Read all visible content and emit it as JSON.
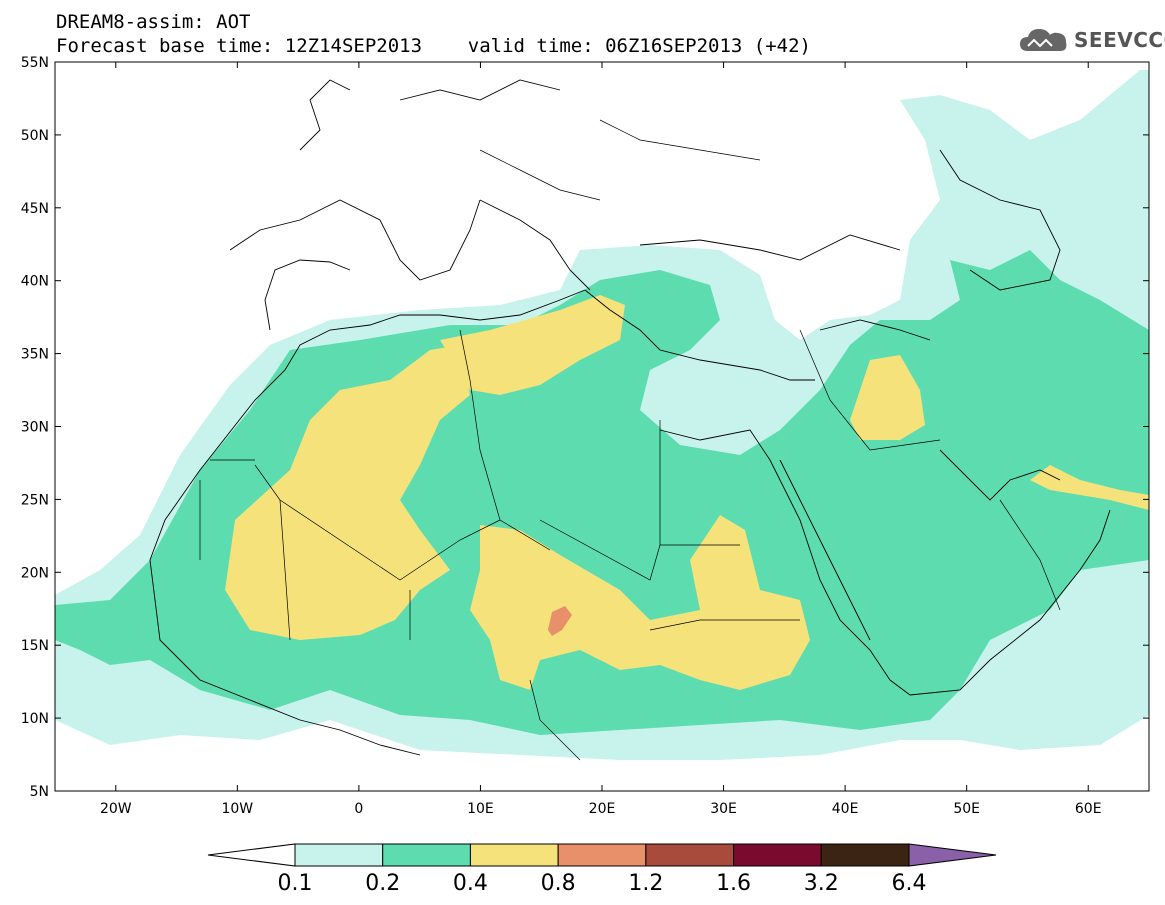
{
  "header": {
    "line1": "DREAM8-assim: AOT",
    "line2": "Forecast base time: 12Z14SEP2013    valid time: 06Z16SEP2013 (+42)"
  },
  "logo": {
    "text": "SEEVCCC",
    "icon": "cloud-icon"
  },
  "map": {
    "lon_range": [
      -25,
      65
    ],
    "lat_range": [
      5,
      55
    ],
    "lat_ticks": [
      "55N",
      "50N",
      "45N",
      "40N",
      "35N",
      "30N",
      "25N",
      "20N",
      "15N",
      "10N",
      "5N"
    ],
    "lon_ticks": [
      "20W",
      "10W",
      "0",
      "10E",
      "20E",
      "30E",
      "40E",
      "50E",
      "60E"
    ]
  },
  "colorbar": {
    "labels": [
      "0.1",
      "0.2",
      "0.4",
      "0.8",
      "1.2",
      "1.6",
      "3.2",
      "6.4"
    ],
    "colors": [
      "#ffffff",
      "#c8f2ec",
      "#5ddcb0",
      "#f5e27a",
      "#e8906a",
      "#a84a3c",
      "#7a0a2e",
      "#3c2414",
      "#8a60a8"
    ]
  }
}
